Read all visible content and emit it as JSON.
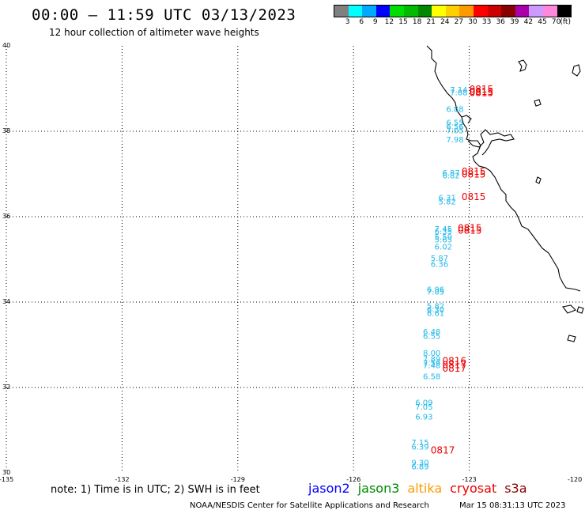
{
  "header": {
    "title": "00:00 – 11:59 UTC 03/13/2023",
    "subtitle": "12 hour collection of altimeter wave heights"
  },
  "legend": {
    "colors": [
      "#808080",
      "#00ffff",
      "#00aaff",
      "#0000ff",
      "#00dd00",
      "#00bb00",
      "#008800",
      "#ffff00",
      "#ffd000",
      "#ff9900",
      "#ff0000",
      "#cc0000",
      "#880000",
      "#aa00aa",
      "#cc99ff",
      "#ff88dd",
      "#000000"
    ],
    "ticks": [
      "3",
      "6",
      "9",
      "12",
      "15",
      "18",
      "21",
      "24",
      "27",
      "30",
      "33",
      "36",
      "39",
      "42",
      "45",
      "70",
      "(ft)"
    ]
  },
  "axes": {
    "lat_labels": [
      "40",
      "38",
      "36",
      "34",
      "32",
      "30"
    ],
    "lon_labels": [
      "-135",
      "-132",
      "-129",
      "-126",
      "-123",
      "-120"
    ]
  },
  "measurements": {
    "color_jason3": "#22b8e8",
    "color_time": "#ee0000",
    "swh": [
      {
        "v": "7.14",
        "lon": -123.5,
        "lat": 38.91
      },
      {
        "v": "7.08",
        "lon": -123.5,
        "lat": 38.84
      },
      {
        "v": "6.88",
        "lon": -123.6,
        "lat": 38.45
      },
      {
        "v": "6.55",
        "lon": -123.6,
        "lat": 38.14
      },
      {
        "v": "6.56",
        "lon": -123.6,
        "lat": 38.05
      },
      {
        "v": "7.05",
        "lon": -123.6,
        "lat": 37.95
      },
      {
        "v": "7.98",
        "lon": -123.6,
        "lat": 37.74
      },
      {
        "v": "6.87",
        "lon": -123.7,
        "lat": 36.96
      },
      {
        "v": "6.82",
        "lon": -123.7,
        "lat": 36.9
      },
      {
        "v": "6.31",
        "lon": -123.8,
        "lat": 36.38
      },
      {
        "v": "5.82",
        "lon": -123.8,
        "lat": 36.29
      },
      {
        "v": "7.45",
        "lon": -123.9,
        "lat": 35.65
      },
      {
        "v": "6.35",
        "lon": -123.9,
        "lat": 35.59
      },
      {
        "v": "5.50",
        "lon": -123.9,
        "lat": 35.46
      },
      {
        "v": "5.65",
        "lon": -123.9,
        "lat": 35.4
      },
      {
        "v": "6.02",
        "lon": -123.9,
        "lat": 35.23
      },
      {
        "v": "5.87",
        "lon": -124.0,
        "lat": 34.96
      },
      {
        "v": "6.36",
        "lon": -124.0,
        "lat": 34.82
      },
      {
        "v": "6.96",
        "lon": -124.1,
        "lat": 34.23
      },
      {
        "v": "7.05",
        "lon": -124.1,
        "lat": 34.18
      },
      {
        "v": "5.82",
        "lon": -124.1,
        "lat": 33.84
      },
      {
        "v": "6.30",
        "lon": -124.1,
        "lat": 33.76
      },
      {
        "v": "6.61",
        "lon": -124.1,
        "lat": 33.68
      },
      {
        "v": "6.48",
        "lon": -124.2,
        "lat": 33.24
      },
      {
        "v": "6.55",
        "lon": -124.2,
        "lat": 33.14
      },
      {
        "v": "8.00",
        "lon": -124.2,
        "lat": 32.74
      },
      {
        "v": "7.89",
        "lon": -124.2,
        "lat": 32.6
      },
      {
        "v": "7.59",
        "lon": -124.2,
        "lat": 32.51
      },
      {
        "v": "7.48",
        "lon": -124.2,
        "lat": 32.45
      },
      {
        "v": "6.58",
        "lon": -124.2,
        "lat": 32.19
      },
      {
        "v": "6.09",
        "lon": -124.4,
        "lat": 31.58
      },
      {
        "v": "7.05",
        "lon": -124.4,
        "lat": 31.48
      },
      {
        "v": "6.93",
        "lon": -124.4,
        "lat": 31.25
      },
      {
        "v": "7.15",
        "lon": -124.5,
        "lat": 30.65
      },
      {
        "v": "6.39",
        "lon": -124.5,
        "lat": 30.55
      },
      {
        "v": "9.30",
        "lon": -124.5,
        "lat": 30.18
      },
      {
        "v": "6.89",
        "lon": -124.5,
        "lat": 30.08
      }
    ],
    "times": [
      {
        "v": "0815",
        "lon": -123.0,
        "lat": 38.91
      },
      {
        "v": "0815",
        "lon": -123.0,
        "lat": 38.85
      },
      {
        "v": "0815",
        "lon": -123.0,
        "lat": 38.82
      },
      {
        "v": "0815",
        "lon": -123.2,
        "lat": 36.98
      },
      {
        "v": "0815",
        "lon": -123.2,
        "lat": 36.92
      },
      {
        "v": "0815",
        "lon": -123.2,
        "lat": 36.39
      },
      {
        "v": "0815",
        "lon": -123.3,
        "lat": 35.66
      },
      {
        "v": "0815",
        "lon": -123.3,
        "lat": 35.6
      },
      {
        "v": "0816",
        "lon": -123.7,
        "lat": 32.55
      },
      {
        "v": "0817",
        "lon": -123.7,
        "lat": 32.45
      },
      {
        "v": "0817",
        "lon": -123.7,
        "lat": 32.37
      },
      {
        "v": "0817",
        "lon": -124.0,
        "lat": 30.45
      }
    ]
  },
  "footer": {
    "note": "note:  1) Time is in UTC;  2) SWH is in feet",
    "satellites": [
      {
        "name": "jason2",
        "color": "#0000ff"
      },
      {
        "name": "jason3",
        "color": "#008800"
      },
      {
        "name": "altika",
        "color": "#ff9900"
      },
      {
        "name": "cryosat",
        "color": "#ee0000"
      },
      {
        "name": "s3a",
        "color": "#880000"
      }
    ],
    "credit": "NOAA/NESDIS Center for Satellite Applications and Research",
    "timestamp": "Mar 15 08:31:13 UTC 2023"
  }
}
